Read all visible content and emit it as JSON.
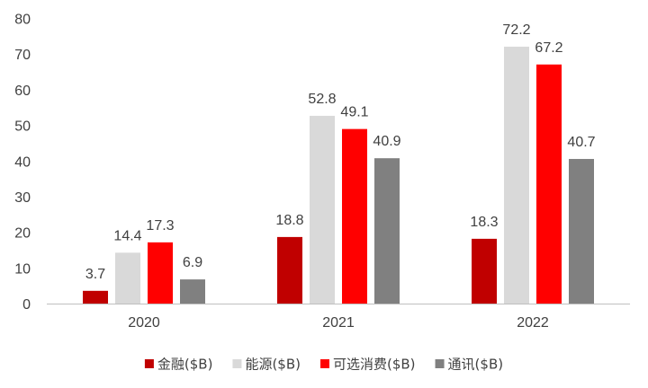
{
  "chart_data": {
    "type": "bar",
    "categories": [
      "2020",
      "2021",
      "2022"
    ],
    "series": [
      {
        "name": "金融($B)",
        "values": [
          3.7,
          18.8,
          18.3
        ],
        "color": "#C00000"
      },
      {
        "name": "能源($B)",
        "values": [
          14.4,
          52.8,
          72.2
        ],
        "color": "#D9D9D9"
      },
      {
        "name": "可选消费($B)",
        "values": [
          17.3,
          49.1,
          67.2
        ],
        "color": "#FF0000"
      },
      {
        "name": "通讯($B)",
        "values": [
          6.9,
          40.9,
          40.7
        ],
        "color": "#808080"
      }
    ],
    "ylim": [
      0,
      80
    ],
    "yticks": [
      0,
      10,
      20,
      30,
      40,
      50,
      60,
      70,
      80
    ],
    "grid": false,
    "legend_position": "bottom",
    "show_data_labels": true
  }
}
